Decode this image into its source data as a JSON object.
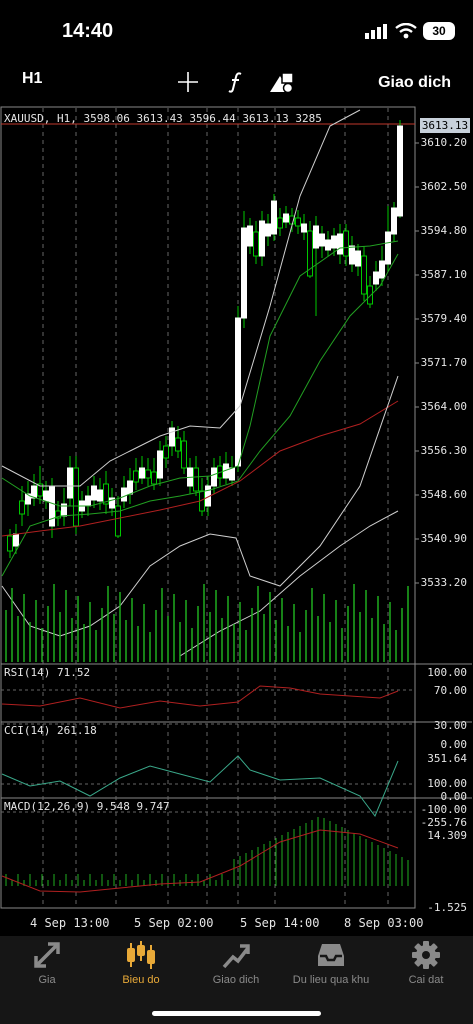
{
  "status": {
    "time": "14:40",
    "battery": "30"
  },
  "toolbar": {
    "timeframe": "H1",
    "trade_label": "Giao dich",
    "icons": [
      "crosshair-icon",
      "function-icon",
      "shapes-icon"
    ]
  },
  "chart": {
    "info": "XAUUSD, H1, 3598.06 3613.43 3596.44 3613.13 3285",
    "current_price": "3613.13",
    "price_axis": [
      "3610.20",
      "3602.50",
      "3594.80",
      "3587.10",
      "3579.40",
      "3571.70",
      "3564.00",
      "3556.30",
      "3548.60",
      "3540.90",
      "3533.20"
    ],
    "time_axis": [
      "4 Sep 13:00",
      "5 Sep 02:00",
      "5 Sep 14:00",
      "8 Sep 03:00"
    ],
    "colors": {
      "up": "#ffffff",
      "down": "#ffffff",
      "candle_outline": "#00c800",
      "volume": "#1fae1f",
      "ma_fast": "#22a022",
      "ma_slow": "#b02020",
      "bands": "#cfcfcf",
      "current_line": "#c0392b"
    }
  },
  "rsi": {
    "label": "RSI(14) 71.52",
    "levels": [
      "100.00",
      "70.00",
      "30.00",
      "0.00"
    ]
  },
  "cci": {
    "label": "CCI(14) 261.18",
    "levels": [
      "351.64",
      "100.00",
      "0.00",
      "-100.00",
      "-255.76"
    ]
  },
  "macd": {
    "label": "MACD(12,26,9) 9.548 9.747",
    "levels": [
      "14.309",
      "-1.525"
    ]
  },
  "tabs": [
    {
      "label": "Gia",
      "icon": "quotes-icon"
    },
    {
      "label": "Bieu do",
      "icon": "chart-candles-icon",
      "active": true
    },
    {
      "label": "Giao dich",
      "icon": "trade-icon"
    },
    {
      "label": "Du lieu qua khu",
      "icon": "history-icon"
    },
    {
      "label": "Cai dat",
      "icon": "gear-icon"
    }
  ]
}
